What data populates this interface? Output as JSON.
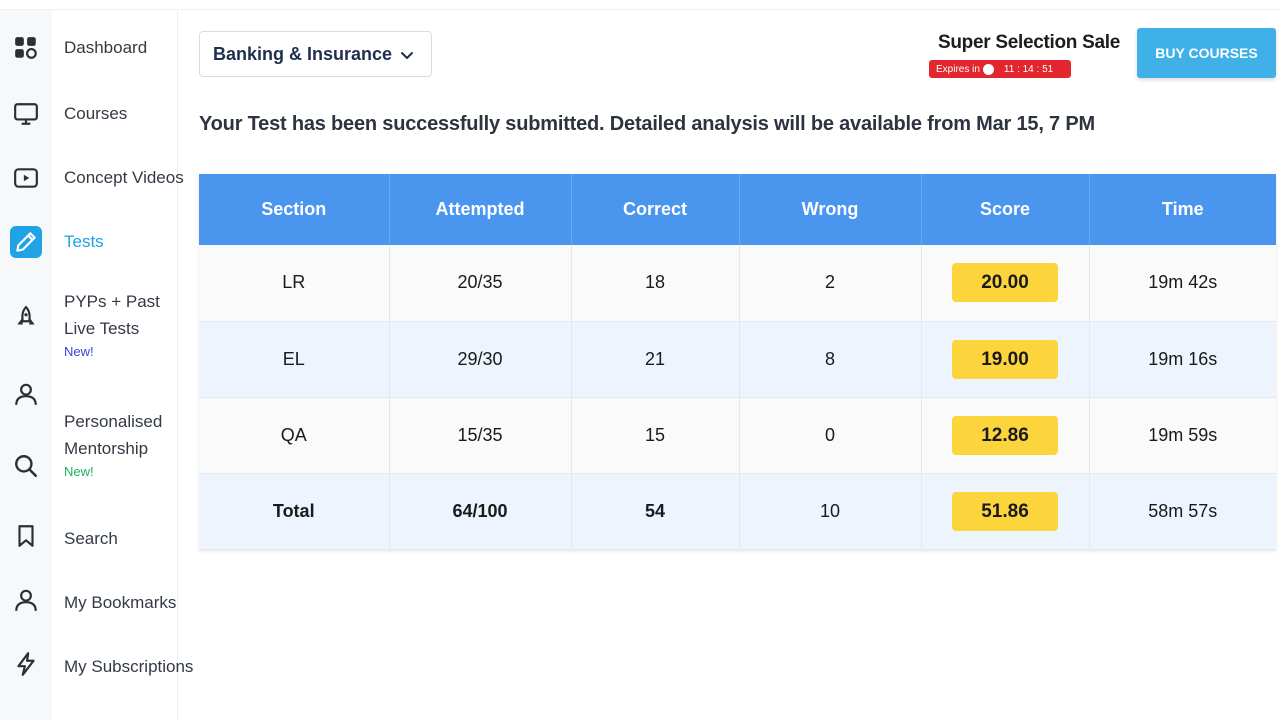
{
  "sidebar": {
    "items": [
      {
        "label": "Dashboard",
        "icon": "dashboard-icon"
      },
      {
        "label": "Courses",
        "icon": "monitor-icon"
      },
      {
        "label": "Concept Videos",
        "icon": "video-icon"
      },
      {
        "label": "Tests",
        "icon": "pencil-icon",
        "active": true
      },
      {
        "label_line1": "PYPs + Past",
        "label_line2": "Live Tests",
        "badge": "New!",
        "icon": "rocket-icon"
      },
      {
        "label_line1": "Personalised",
        "label_line2": "Mentorship",
        "badge": "New!",
        "icon": "user-icon"
      },
      {
        "label": "Search",
        "icon": "search-icon"
      },
      {
        "label": "My Bookmarks",
        "icon": "bookmark-icon"
      },
      {
        "label": "My Subscriptions",
        "icon": "lightning-icon"
      }
    ],
    "accent_color": "#1fa3e6"
  },
  "header": {
    "exam_select": "Banking & Insurance",
    "sale_title": "Super Selection Sale",
    "expires_label": "Expires in",
    "expires_timer": "11 : 14 : 51",
    "buy_button": "BUY COURSES"
  },
  "message": "Your Test has been successfully submitted. Detailed analysis will be available from Mar 15, 7 PM",
  "table": {
    "headers": [
      "Section",
      "Attempted",
      "Correct",
      "Wrong",
      "Score",
      "Time"
    ],
    "rows": [
      {
        "section": "LR",
        "attempted": "20/35",
        "correct": "18",
        "wrong": "2",
        "score": "20.00",
        "time": "19m 42s"
      },
      {
        "section": "EL",
        "attempted": "29/30",
        "correct": "21",
        "wrong": "8",
        "score": "19.00",
        "time": "19m 16s"
      },
      {
        "section": "QA",
        "attempted": "15/35",
        "correct": "15",
        "wrong": "0",
        "score": "12.86",
        "time": "19m 59s"
      }
    ],
    "total": {
      "section": "Total",
      "attempted": "64/100",
      "correct": "54",
      "wrong": "10",
      "score": "51.86",
      "time": "58m 57s"
    },
    "header_color": "#4a96ef",
    "score_color": "#fcd53d"
  }
}
